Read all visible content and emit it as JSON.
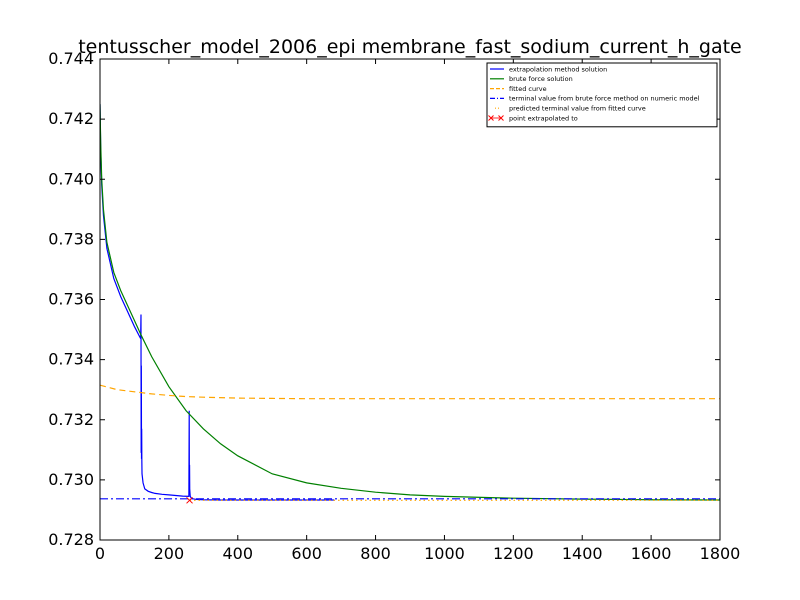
{
  "chart_data": {
    "type": "line",
    "title": "tentusscher_model_2006_epi membrane_fast_sodium_current_h_gate",
    "xlabel": "",
    "ylabel": "",
    "xlim": [
      0,
      1800
    ],
    "ylim": [
      0.728,
      0.744
    ],
    "xticks": [
      "0",
      "200",
      "400",
      "600",
      "800",
      "1000",
      "1200",
      "1400",
      "1600",
      "1800"
    ],
    "yticks": [
      "0.728",
      "0.730",
      "0.732",
      "0.734",
      "0.736",
      "0.738",
      "0.740",
      "0.742",
      "0.744"
    ],
    "grid": false,
    "legend_position": "top-right",
    "series": [
      {
        "name": "extrapolation method solution",
        "color": "#0000ff",
        "style": "solid",
        "x": [
          0,
          2,
          5,
          10,
          20,
          40,
          60,
          80,
          100,
          118,
          119,
          119.5,
          120,
          120.5,
          121,
          121.5,
          122,
          125,
          130,
          140,
          150,
          160,
          180,
          200,
          220,
          240,
          258,
          259,
          259.5,
          260,
          260.5,
          261,
          262,
          265,
          270,
          280,
          300,
          350,
          400,
          500,
          600,
          680
        ],
        "y": [
          0.7425,
          0.741,
          0.7398,
          0.7388,
          0.7377,
          0.7367,
          0.7361,
          0.7356,
          0.7351,
          0.7347,
          0.7355,
          0.7309,
          0.7338,
          0.7307,
          0.7317,
          0.7306,
          0.7302,
          0.7299,
          0.7297,
          0.72962,
          0.72958,
          0.72955,
          0.72952,
          0.7295,
          0.72948,
          0.72946,
          0.72945,
          0.7323,
          0.7298,
          0.7305,
          0.7297,
          0.7296,
          0.72945,
          0.7294,
          0.72937,
          0.72935,
          0.72934,
          0.72933,
          0.72933,
          0.72933,
          0.72933,
          0.72933
        ]
      },
      {
        "name": "brute force solution",
        "color": "#008000",
        "style": "solid",
        "x": [
          0,
          2,
          5,
          10,
          20,
          40,
          60,
          80,
          100,
          120,
          150,
          200,
          250,
          300,
          350,
          400,
          500,
          600,
          700,
          800,
          900,
          1000,
          1200,
          1400,
          1600,
          1800
        ],
        "y": [
          0.7425,
          0.7412,
          0.74,
          0.739,
          0.7379,
          0.7369,
          0.7363,
          0.7358,
          0.7353,
          0.7348,
          0.7341,
          0.7331,
          0.7323,
          0.7317,
          0.7312,
          0.7308,
          0.7302,
          0.7299,
          0.72972,
          0.72959,
          0.7295,
          0.72945,
          0.72939,
          0.72936,
          0.72934,
          0.72933
        ]
      },
      {
        "name": "fitted curve",
        "color": "#ffa500",
        "style": "dashed",
        "x": [
          0,
          50,
          100,
          150,
          200,
          250,
          300,
          400,
          500,
          600,
          800,
          1000,
          1200,
          1400,
          1600,
          1800
        ],
        "y": [
          0.73315,
          0.733,
          0.73293,
          0.73286,
          0.73281,
          0.73277,
          0.73275,
          0.73272,
          0.73271,
          0.7327,
          0.7327,
          0.7327,
          0.7327,
          0.7327,
          0.7327,
          0.7327
        ]
      },
      {
        "name": "terminal value from brute force method on numeric model",
        "color": "#0000ff",
        "style": "dashdot",
        "x": [
          0,
          1800
        ],
        "y": [
          0.72937,
          0.72937
        ]
      },
      {
        "name": "predicted terminal value from fitted curve",
        "color": "#ffa500",
        "style": "dotted",
        "x": [
          260,
          1800
        ],
        "y": [
          0.72932,
          0.72932
        ]
      },
      {
        "name": "point extrapolated to",
        "color": "#ff0000",
        "style": "marker",
        "x": [
          260
        ],
        "y": [
          0.72932
        ]
      }
    ]
  }
}
